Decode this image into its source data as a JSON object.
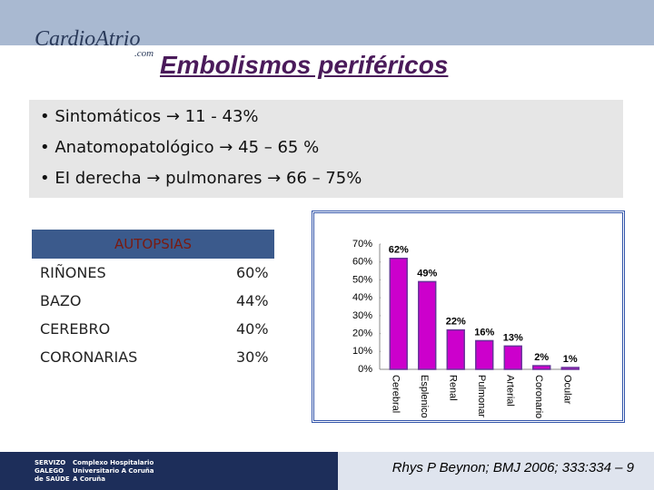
{
  "header": {
    "logo": "CardioAtrio",
    "logo_suffix": ".com",
    "title": "Embolismos periféricos"
  },
  "bullets": [
    "Sintomáticos → 11 - 43%",
    "Anatomopatológico → 45 – 65 %",
    "EI derecha → pulmonares → 66 – 75%"
  ],
  "table": {
    "title": "AUTOPSIAS",
    "rows": [
      [
        "RIÑONES",
        "60%"
      ],
      [
        "BAZO",
        "44%"
      ],
      [
        "CEREBRO",
        "40%"
      ],
      [
        "CORONARIAS",
        "30%"
      ]
    ]
  },
  "chart_data": {
    "type": "bar",
    "categories": [
      "Cerebral",
      "Esplenico",
      "Renal",
      "Pulmonar",
      "Arterial",
      "Coronario",
      "Ocular"
    ],
    "values": [
      62,
      49,
      22,
      16,
      13,
      2,
      1
    ],
    "value_labels": [
      "62%",
      "49%",
      "22%",
      "16%",
      "13%",
      "2%",
      "1%"
    ],
    "color": "#cc00cc",
    "ylim": [
      0,
      70
    ],
    "yticks": [
      {
        "value": 0,
        "label": "0%"
      },
      {
        "value": 10,
        "label": "10%"
      },
      {
        "value": 20,
        "label": "20%"
      },
      {
        "value": 30,
        "label": "30%"
      },
      {
        "value": 40,
        "label": "40%"
      },
      {
        "value": 50,
        "label": "50%"
      },
      {
        "value": 60,
        "label": "60%"
      },
      {
        "value": 70,
        "label": "70%"
      }
    ]
  },
  "footer": {
    "org": [
      "SERVIZO",
      "GALEGO",
      "de SAÚDE"
    ],
    "hospital": [
      "Complexo Hospitalario",
      "Universitario A Coruña",
      "A Coruña"
    ],
    "citation": "Rhys P Beynon; BMJ 2006; 333:334 – 9"
  }
}
